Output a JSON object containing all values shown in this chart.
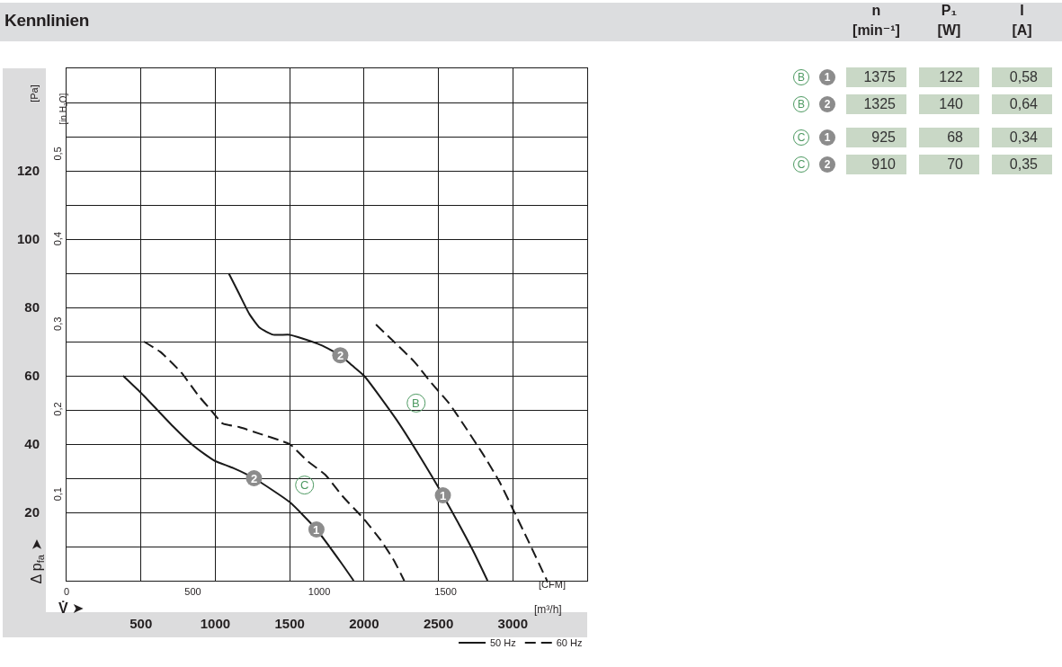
{
  "chart_data": [
    {
      "type": "line",
      "title": "Kennlinien",
      "xlabel": "V̇ ➤",
      "ylabel": "Δ p$_{fa}$ ➤",
      "x2label": "[CFM]",
      "y2label": "[in H₂O]",
      "annotations": [
        "[m³/h]",
        "[Pa]",
        {
          "text": "2",
          "x": 1840,
          "y": 66
        },
        {
          "text": "1",
          "x": 2530,
          "y": 25
        },
        {
          "text": "2",
          "x": 1260,
          "y": 30
        },
        {
          "text": "1",
          "x": 1680,
          "y": 15
        },
        {
          "text": "B",
          "x": 2350,
          "y": 52
        },
        {
          "text": "C",
          "x": 1600,
          "y": 28
        }
      ],
      "xlim": [
        0,
        3500
      ],
      "xticks": [
        500,
        1000,
        1500,
        2000,
        2500,
        3000
      ],
      "x2lim": [
        0,
        2060
      ],
      "x2ticks": [
        0,
        500,
        1000,
        1500
      ],
      "ylim": [
        0,
        150
      ],
      "yticks": [
        {
          "value": 10,
          "label": null
        },
        20,
        {
          "value": 30,
          "label": null
        },
        40,
        {
          "value": 50,
          "label": null
        },
        60,
        {
          "value": 70,
          "label": null
        },
        80,
        {
          "value": 90,
          "label": null
        },
        100,
        {
          "value": 110,
          "label": null
        },
        120,
        {
          "value": 130,
          "label": null
        },
        {
          "value": 140,
          "label": null
        }
      ],
      "y2lim": [
        0,
        0.602
      ],
      "y2ticks": [
        {
          "value": 0.1,
          "label": "0,1"
        },
        {
          "value": 0.2,
          "label": "0,2"
        },
        {
          "value": 0.3,
          "label": "0,3"
        },
        {
          "value": 0.4,
          "label": "0,4"
        },
        {
          "value": 0.5,
          "label": "0,5"
        }
      ],
      "grid": true,
      "legend": "bottom right",
      "series": [
        {
          "name": "50 Hz",
          "color": "#1a1a1a",
          "line_style": "solid",
          "x": [
            1090,
            1160,
            1230,
            1300,
            1390,
            1500,
            1580,
            1710,
            1840,
            1920,
            2000,
            2220,
            2450,
            2530,
            2730,
            2830
          ],
          "values": [
            90,
            84,
            78,
            74,
            72,
            72,
            71,
            69,
            66,
            63,
            60,
            47,
            31,
            25,
            9,
            0
          ]
        },
        {
          "name": "60 Hz",
          "color": "#1a1a1a",
          "line_style": "dashed",
          "x": [
            2080,
            2200,
            2340,
            2450,
            2570,
            2680,
            2800,
            2910,
            3000,
            3100,
            3230
          ],
          "values": [
            75,
            70,
            64,
            58,
            52,
            45,
            37,
            29,
            21,
            12,
            0
          ]
        },
        {
          "color": "#1a1a1a",
          "line_style": "solid",
          "x": [
            380,
            500,
            610,
            720,
            840,
            930,
            1000,
            1120,
            1260,
            1500,
            1680,
            1850,
            1930
          ],
          "values": [
            60,
            55,
            50,
            45,
            40,
            37,
            35,
            33,
            30,
            23,
            15,
            5,
            0
          ]
        },
        {
          "color": "#1a1a1a",
          "line_style": "dashed",
          "x": [
            520,
            630,
            770,
            890,
            970,
            1050,
            1160,
            1300,
            1440,
            1500,
            1620,
            1740,
            1850,
            2000,
            2110,
            2200,
            2270
          ],
          "values": [
            70,
            67,
            61,
            54,
            50,
            46,
            45,
            43,
            41,
            40,
            35,
            31,
            25,
            18,
            12,
            6,
            0
          ]
        },
        {
          "type": "scatter",
          "marker": "circle",
          "color": "#8c8c8c",
          "x": [
            1840,
            2530,
            1260,
            1680
          ],
          "values": [
            66,
            25,
            30,
            15
          ]
        }
      ]
    },
    {
      "type": "other",
      "categories": [
        "n\n[min⁻¹]",
        "P₁\n[W]",
        "I\n[A]"
      ],
      "y_categories": [
        "B",
        "B",
        "C",
        "C"
      ],
      "y2_categories": [
        "1",
        "2",
        "1",
        "2"
      ],
      "annotations": [
        "1375",
        "122",
        "0,58",
        "1325",
        "140",
        "0,64",
        "925",
        "68",
        "0,34",
        "910",
        "70",
        "0,35"
      ]
    }
  ]
}
